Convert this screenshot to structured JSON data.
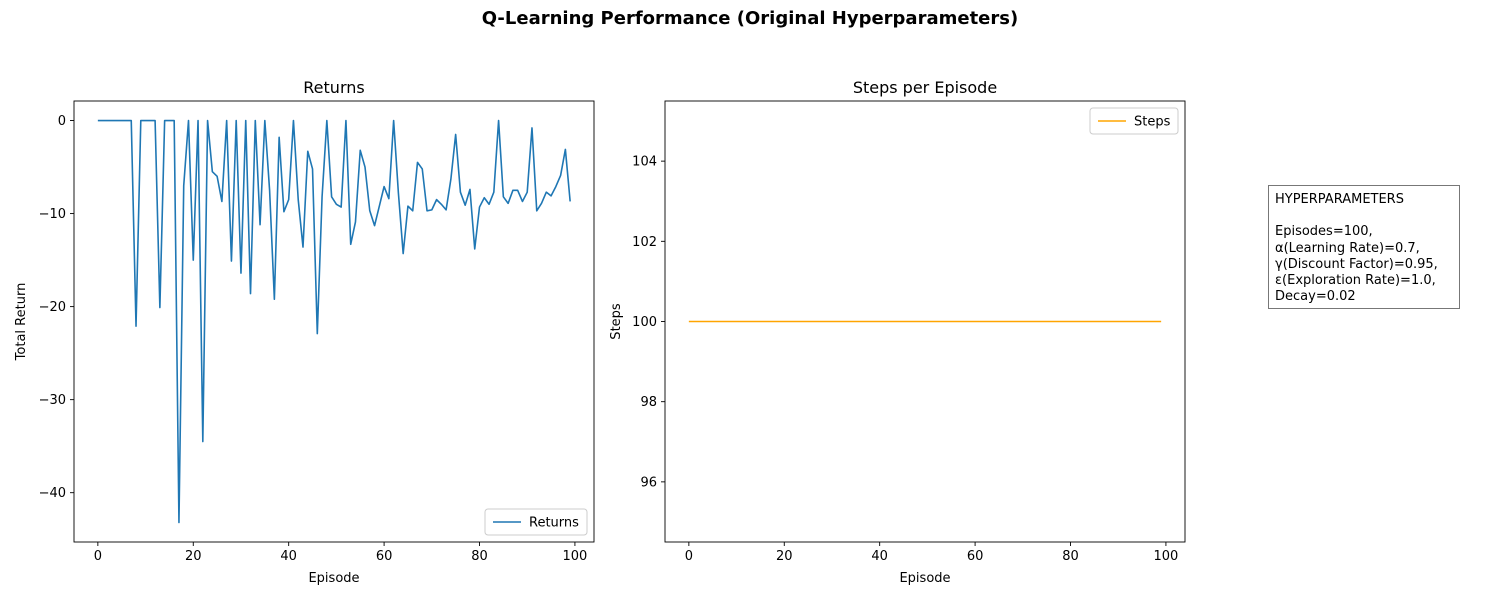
{
  "figure": {
    "suptitle": "Q-Learning Performance (Original Hyperparameters)"
  },
  "hyperparameters": {
    "heading": "HYPERPARAMETERS",
    "lines": [
      "Episodes=100,",
      "α(Learning Rate)=0.7,",
      "γ(Discount Factor)=0.95,",
      "ε(Exploration Rate)=1.0,",
      "Decay=0.02"
    ]
  },
  "chart_data": [
    {
      "type": "line",
      "title": "Returns",
      "xlabel": "Episode",
      "ylabel": "Total Return",
      "xlim": [
        -5,
        104
      ],
      "ylim": [
        -45.3,
        2.1
      ],
      "xticks": [
        0,
        20,
        40,
        60,
        80,
        100
      ],
      "yticks": [
        0,
        -10,
        -20,
        -30,
        -40
      ],
      "legend": "bottom-right",
      "color": "#1f77b4",
      "series": [
        {
          "name": "Returns",
          "x": [
            0,
            1,
            2,
            3,
            4,
            5,
            6,
            7,
            8,
            9,
            10,
            11,
            12,
            13,
            14,
            15,
            16,
            17,
            18,
            19,
            20,
            21,
            22,
            23,
            24,
            25,
            26,
            27,
            28,
            29,
            30,
            31,
            32,
            33,
            34,
            35,
            36,
            37,
            38,
            39,
            40,
            41,
            42,
            43,
            44,
            45,
            46,
            47,
            48,
            49,
            50,
            51,
            52,
            53,
            54,
            55,
            56,
            57,
            58,
            59,
            60,
            61,
            62,
            63,
            64,
            65,
            66,
            67,
            68,
            69,
            70,
            71,
            72,
            73,
            74,
            75,
            76,
            77,
            78,
            79,
            80,
            81,
            82,
            83,
            84,
            85,
            86,
            87,
            88,
            89,
            90,
            91,
            92,
            93,
            94,
            95,
            96,
            97,
            98,
            99
          ],
          "values": [
            0,
            0,
            0,
            0,
            0,
            0,
            0,
            0,
            -22.1,
            0,
            0,
            0,
            0,
            -20.1,
            0,
            0,
            0,
            -43.2,
            -7,
            0,
            -15,
            0,
            -34.5,
            0,
            -5.5,
            -6,
            -8.7,
            0,
            -15.1,
            0,
            -16.4,
            0,
            -18.6,
            0,
            -11.2,
            0,
            -7.5,
            -19.2,
            -1.8,
            -9.8,
            -8.5,
            0,
            -8.5,
            -13.6,
            -3.3,
            -5.2,
            -22.9,
            -8.2,
            0,
            -8.2,
            -9,
            -9.3,
            0,
            -13.3,
            -10.9,
            -3.2,
            -5,
            -9.7,
            -11.3,
            -9.2,
            -7.1,
            -8.4,
            0,
            -7.8,
            -14.3,
            -9.2,
            -9.7,
            -4.5,
            -5.2,
            -9.7,
            -9.6,
            -8.5,
            -9,
            -9.6,
            -6.3,
            -1.5,
            -7.7,
            -9.1,
            -7.4,
            -13.8,
            -9.3,
            -8.3,
            -9,
            -7.7,
            0,
            -8.2,
            -8.9,
            -7.5,
            -7.5,
            -8.7,
            -7.7,
            -0.8,
            -9.7,
            -8.9,
            -7.7,
            -8.1,
            -7.1,
            -5.9,
            -3.1,
            -8.7
          ]
        }
      ]
    },
    {
      "type": "line",
      "title": "Steps per Episode",
      "xlabel": "Episode",
      "ylabel": "Steps",
      "xlim": [
        -5,
        104
      ],
      "ylim": [
        94.5,
        105.5
      ],
      "xticks": [
        0,
        20,
        40,
        60,
        80,
        100
      ],
      "yticks": [
        96,
        98,
        100,
        102,
        104
      ],
      "legend": "top-right",
      "color": "#ffa500",
      "series": [
        {
          "name": "Steps",
          "x": [
            0,
            99
          ],
          "values": [
            100,
            100
          ]
        }
      ]
    }
  ]
}
